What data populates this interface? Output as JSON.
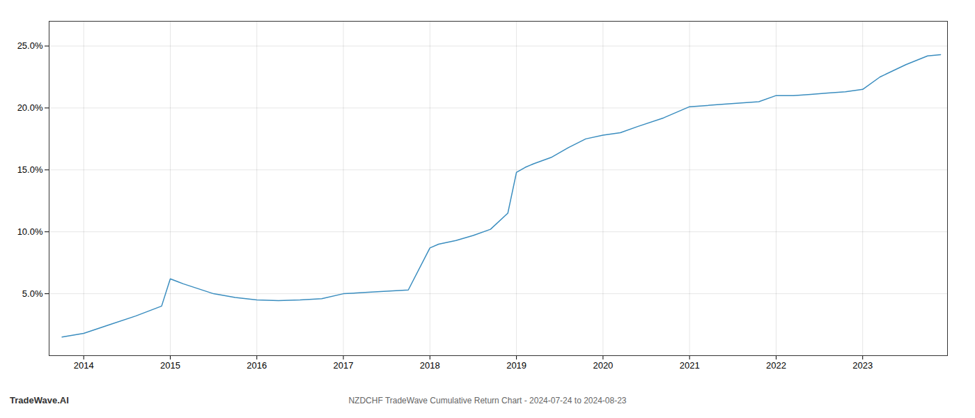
{
  "chart_data": {
    "type": "line",
    "title": "NZDCHF TradeWave Cumulative Return Chart - 2024-07-24 to 2024-08-23",
    "annotations": [
      "TradeWave.AI"
    ],
    "x": [
      2013.75,
      2014.0,
      2014.3,
      2014.6,
      2014.9,
      2015.0,
      2015.15,
      2015.5,
      2015.75,
      2016.0,
      2016.25,
      2016.5,
      2016.75,
      2017.0,
      2017.25,
      2017.5,
      2017.75,
      2018.0,
      2018.1,
      2018.3,
      2018.5,
      2018.7,
      2018.9,
      2019.0,
      2019.1,
      2019.2,
      2019.4,
      2019.6,
      2019.8,
      2020.0,
      2020.2,
      2020.4,
      2020.7,
      2021.0,
      2021.2,
      2021.4,
      2021.6,
      2021.8,
      2022.0,
      2022.2,
      2022.4,
      2022.6,
      2022.8,
      2023.0,
      2023.2,
      2023.5,
      2023.75,
      2023.9
    ],
    "values": [
      1.5,
      1.8,
      2.5,
      3.2,
      4.0,
      6.2,
      5.8,
      5.0,
      4.7,
      4.5,
      4.45,
      4.5,
      4.6,
      5.0,
      5.1,
      5.2,
      5.3,
      8.7,
      9.0,
      9.3,
      9.7,
      10.2,
      11.5,
      14.8,
      15.2,
      15.5,
      16.0,
      16.8,
      17.5,
      17.8,
      18.0,
      18.5,
      19.2,
      20.1,
      20.2,
      20.3,
      20.4,
      20.5,
      21.0,
      21.0,
      21.1,
      21.2,
      21.3,
      21.5,
      22.5,
      23.5,
      24.2,
      24.3
    ],
    "color": "#3a8dbf",
    "xlim": [
      2013.6,
      2023.98
    ],
    "xticks": [
      2014,
      2015,
      2016,
      2017,
      2018,
      2019,
      2020,
      2021,
      2022,
      2023
    ],
    "ylim": [
      0,
      27
    ],
    "yticks": [
      {
        "value": 5,
        "label": "5.0%"
      },
      {
        "value": 10,
        "label": "10.0%"
      },
      {
        "value": 15,
        "label": "15.0%"
      },
      {
        "value": 20,
        "label": "20.0%"
      },
      {
        "value": 25,
        "label": "25.0%"
      }
    ],
    "grid": true
  }
}
